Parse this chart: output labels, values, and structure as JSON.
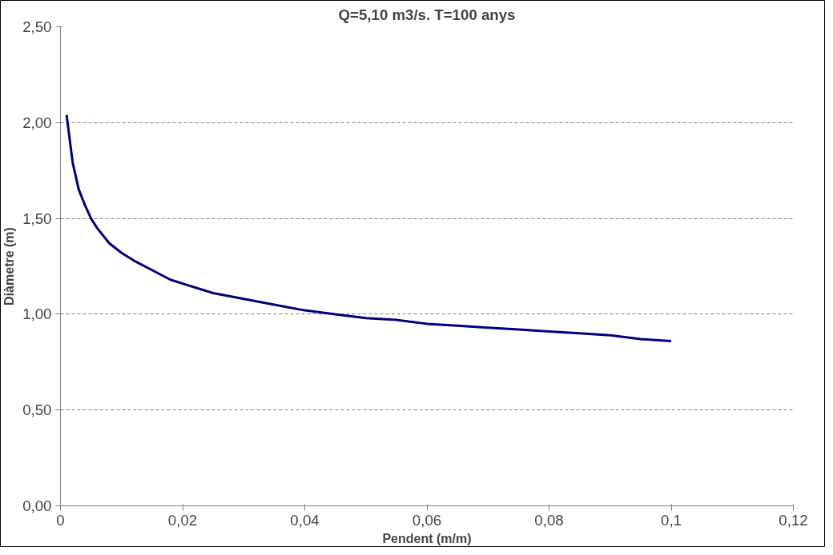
{
  "chart_data": {
    "type": "line",
    "title": "Q=5,10 m3/s. T=100 anys",
    "xlabel": "Pendent (m/m)",
    "ylabel": "Diàmetre (m)",
    "x": [
      0.001,
      0.002,
      0.003,
      0.004,
      0.005,
      0.006,
      0.008,
      0.01,
      0.012,
      0.015,
      0.018,
      0.02,
      0.025,
      0.03,
      0.035,
      0.04,
      0.045,
      0.05,
      0.055,
      0.06,
      0.065,
      0.07,
      0.075,
      0.08,
      0.085,
      0.09,
      0.095,
      0.1
    ],
    "series": [
      {
        "color": "#000080",
        "values": [
          2.04,
          1.79,
          1.65,
          1.57,
          1.5,
          1.45,
          1.37,
          1.32,
          1.28,
          1.23,
          1.18,
          1.16,
          1.11,
          1.08,
          1.05,
          1.02,
          1.0,
          0.98,
          0.97,
          0.95,
          0.94,
          0.93,
          0.92,
          0.91,
          0.9,
          0.89,
          0.87,
          0.86
        ]
      }
    ],
    "xlim": [
      0,
      0.12
    ],
    "ylim": [
      0,
      2.5
    ],
    "xticks": [
      0,
      {
        "value": 0.02,
        "label": "0,02"
      },
      {
        "value": 0.04,
        "label": "0,04"
      },
      {
        "value": 0.06,
        "label": "0,06"
      },
      {
        "value": 0.08,
        "label": "0,08"
      },
      {
        "value": 0.1,
        "label": "0,1"
      },
      {
        "value": 0.12,
        "label": "0,12"
      }
    ],
    "yticks": [
      {
        "value": 0,
        "label": "0,00"
      },
      {
        "value": 0.5,
        "label": "0,50"
      },
      {
        "value": 1,
        "label": "1,00"
      },
      {
        "value": 1.5,
        "label": "1,50"
      },
      {
        "value": 2,
        "label": "2,00"
      },
      {
        "value": 2.5,
        "label": "2,50"
      }
    ],
    "grid": "y",
    "marker": "none",
    "line_style": "solid"
  }
}
